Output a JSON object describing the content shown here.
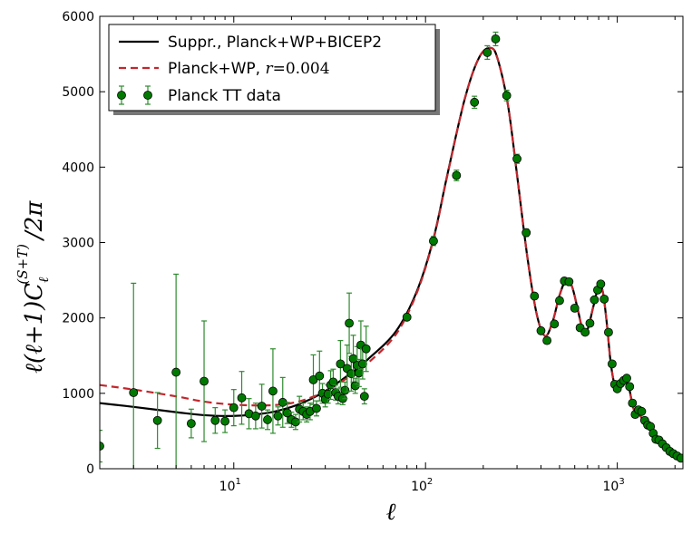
{
  "chart_data": {
    "type": "scatter",
    "title": "",
    "xlabel": "ℓ",
    "ylabel_parts": {
      "main": "ℓ(ℓ+1)C",
      "sub": "ℓ",
      "sup": "(S+T)",
      "tail": "/2π"
    },
    "xscale": "log",
    "xlim": [
      2,
      2200
    ],
    "ylim": [
      0,
      6000
    ],
    "y_ticks": [
      "0",
      "1000",
      "2000",
      "3000",
      "4000",
      "5000",
      "6000"
    ],
    "x_ticks": [
      {
        "value": 10,
        "base": "10",
        "exp": "1"
      },
      {
        "value": 100,
        "base": "10",
        "exp": "2"
      },
      {
        "value": 1000,
        "base": "10",
        "exp": "3"
      }
    ],
    "legend": {
      "position": "top-left",
      "entries": [
        {
          "label": "Suppr., Planck+WP+BICEP2",
          "style": "solid-black"
        },
        {
          "label": "Planck+WP, ",
          "math": "r",
          "math_rest": "=0.004",
          "style": "dashed-red"
        },
        {
          "label": "Planck TT data",
          "style": "green-points"
        }
      ]
    },
    "colors": {
      "suppressed": "#000000",
      "planck_wp": "#c1272d",
      "data": "#007a00",
      "errorbar": "#2e8b2e"
    },
    "series": [
      {
        "name": "Suppr., Planck+WP+BICEP2",
        "x": [
          2,
          3,
          5,
          7,
          10,
          15,
          20,
          25,
          30,
          40,
          50,
          70,
          90,
          110,
          130,
          160,
          190,
          220,
          240,
          270,
          300,
          340,
          380,
          420,
          460,
          500,
          540,
          580,
          620,
          660,
          700,
          750,
          800,
          840,
          880,
          920,
          960,
          1000,
          1050,
          1100,
          1150,
          1200,
          1250,
          1300,
          1400,
          1500,
          1600,
          1700,
          1800,
          1900,
          2000,
          2100,
          2200
        ],
        "y": [
          870,
          820,
          750,
          710,
          700,
          740,
          820,
          920,
          1030,
          1250,
          1450,
          1820,
          2350,
          3050,
          3900,
          4900,
          5450,
          5580,
          5400,
          4800,
          3900,
          2800,
          2050,
          1760,
          1950,
          2300,
          2500,
          2420,
          2130,
          1850,
          1850,
          2150,
          2420,
          2350,
          1950,
          1450,
          1150,
          1050,
          1080,
          1170,
          1080,
          850,
          720,
          720,
          600,
          560,
          430,
          330,
          290,
          230,
          180,
          150,
          130
        ]
      },
      {
        "name": "Planck+WP, r=0.004",
        "x": [
          2,
          3,
          5,
          7,
          10,
          15,
          20,
          25,
          30,
          40,
          50,
          70,
          90,
          110,
          130,
          160,
          190,
          220,
          240,
          270,
          300,
          340,
          380,
          420,
          460,
          500,
          540,
          580,
          620,
          660,
          700,
          750,
          800,
          840,
          880,
          920,
          960,
          1000,
          1050,
          1100,
          1150,
          1200,
          1250,
          1300,
          1400,
          1500,
          1600,
          1700,
          1800,
          1900,
          2000,
          2100,
          2200
        ],
        "y": [
          1110,
          1050,
          960,
          890,
          850,
          840,
          870,
          940,
          1030,
          1220,
          1400,
          1780,
          2330,
          3040,
          3890,
          4900,
          5450,
          5580,
          5400,
          4800,
          3900,
          2800,
          2050,
          1760,
          1950,
          2300,
          2500,
          2420,
          2130,
          1850,
          1850,
          2150,
          2420,
          2350,
          1950,
          1450,
          1150,
          1050,
          1080,
          1170,
          1080,
          850,
          720,
          720,
          600,
          560,
          430,
          330,
          290,
          230,
          180,
          150,
          130
        ]
      },
      {
        "name": "Planck TT data",
        "x": [
          2,
          3,
          4,
          5,
          6,
          7,
          8,
          9,
          10,
          11,
          12,
          13,
          14,
          15,
          16,
          17,
          18,
          19,
          20,
          21,
          22,
          23,
          24,
          25,
          26,
          27,
          28,
          29,
          30,
          31,
          32,
          33,
          34,
          35,
          36,
          37,
          38,
          39,
          40,
          41,
          42,
          43,
          44,
          45,
          46,
          47,
          48,
          49,
          80,
          110,
          145,
          180,
          210,
          232,
          265,
          300,
          335,
          370,
          400,
          430,
          470,
          500,
          530,
          560,
          600,
          640,
          680,
          720,
          760,
          790,
          820,
          855,
          900,
          940,
          970,
          1000,
          1040,
          1080,
          1120,
          1160,
          1200,
          1240,
          1290,
          1340,
          1390,
          1440,
          1490,
          1540,
          1590,
          1650,
          1720,
          1800,
          1880,
          1960,
          2050,
          2150
        ],
        "y": [
          300,
          1010,
          640,
          1280,
          600,
          1160,
          640,
          630,
          810,
          940,
          730,
          700,
          830,
          650,
          1030,
          700,
          880,
          740,
          650,
          620,
          790,
          760,
          720,
          760,
          1180,
          800,
          1230,
          1000,
          920,
          990,
          1110,
          1150,
          1010,
          960,
          1390,
          930,
          1040,
          1330,
          1930,
          1260,
          1460,
          1100,
          1370,
          1270,
          1640,
          1390,
          960,
          1590,
          2010,
          3020,
          3890,
          4860,
          5520,
          5700,
          4950,
          4110,
          3130,
          2290,
          1830,
          1700,
          1920,
          2230,
          2490,
          2480,
          2130,
          1870,
          1810,
          1930,
          2240,
          2370,
          2450,
          2250,
          1810,
          1390,
          1120,
          1060,
          1130,
          1170,
          1200,
          1090,
          870,
          720,
          780,
          760,
          640,
          580,
          560,
          470,
          390,
          380,
          330,
          280,
          230,
          200,
          170,
          140
        ],
        "yerr": [
          210,
          1450,
          370,
          1300,
          190,
          800,
          170,
          150,
          240,
          350,
          200,
          170,
          290,
          130,
          560,
          120,
          330,
          140,
          100,
          100,
          170,
          110,
          100,
          110,
          330,
          100,
          330,
          130,
          100,
          120,
          190,
          170,
          100,
          100,
          310,
          80,
          110,
          310,
          400,
          230,
          310,
          100,
          250,
          180,
          320,
          200,
          100,
          300,
          40,
          60,
          70,
          80,
          90,
          90,
          70,
          60,
          50,
          40,
          40,
          30,
          30,
          30,
          30,
          30,
          30,
          30,
          30,
          30,
          30,
          30,
          30,
          30,
          30,
          30,
          30,
          30,
          30,
          40,
          40,
          40,
          40,
          40,
          40,
          40,
          40,
          40,
          40,
          40,
          40,
          40,
          40,
          40,
          40,
          40,
          40,
          40
        ]
      }
    ]
  }
}
